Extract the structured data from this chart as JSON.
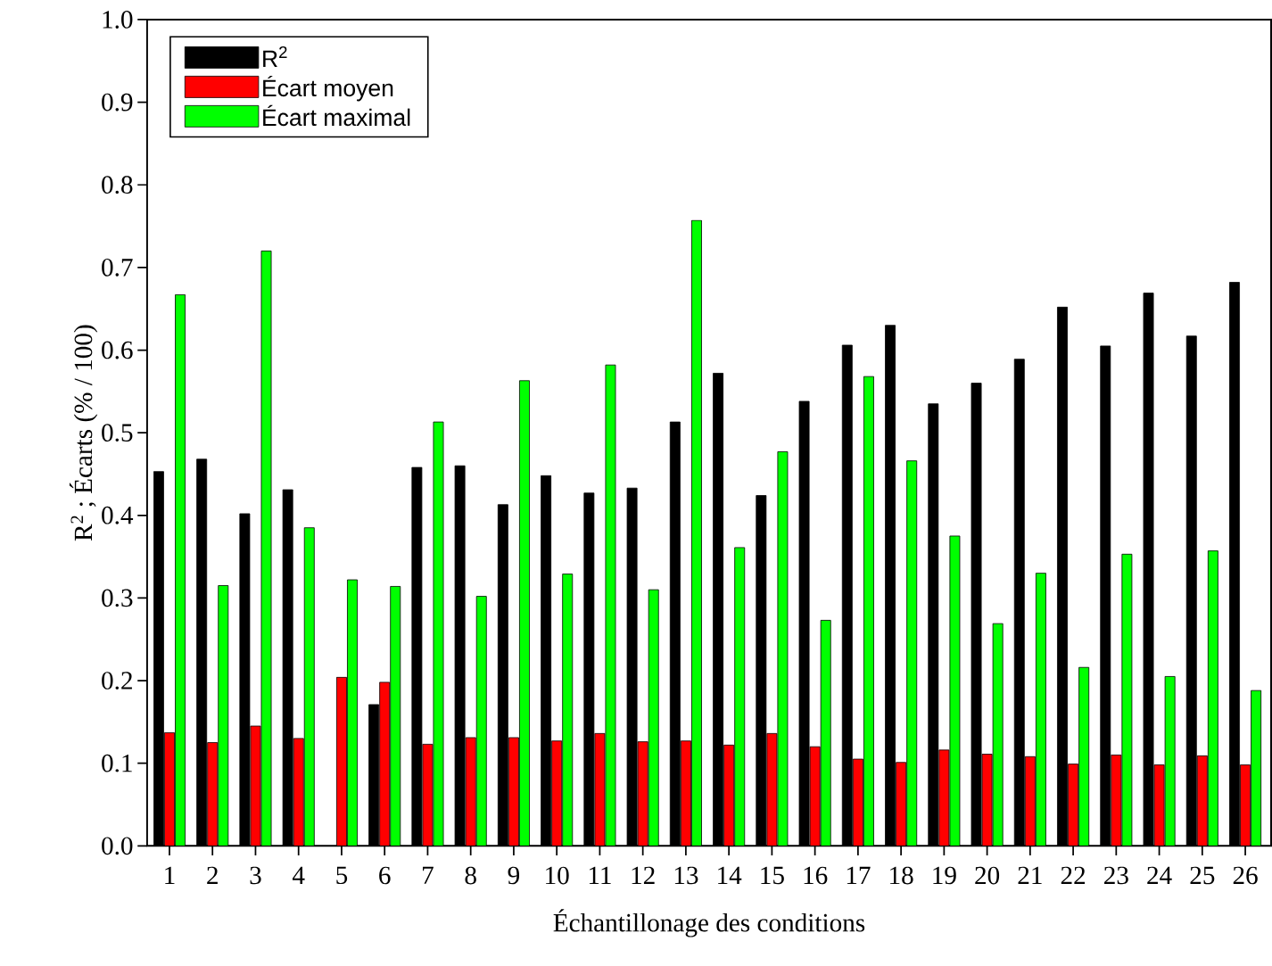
{
  "chart_data": {
    "type": "bar",
    "xlabel": "Échantillonage des conditions",
    "ylabel": "R$^{2}$ ; Écarts (% / 100)",
    "categories": [
      "1",
      "2",
      "3",
      "4",
      "5",
      "6",
      "7",
      "8",
      "9",
      "10",
      "11",
      "12",
      "13",
      "14",
      "15",
      "16",
      "17",
      "18",
      "19",
      "20",
      "21",
      "22",
      "23",
      "24",
      "25",
      "26"
    ],
    "series": [
      {
        "name": "R$^{2}$",
        "color": "#000000",
        "values": [
          0.453,
          0.468,
          0.402,
          0.431,
          null,
          0.171,
          0.458,
          0.46,
          0.413,
          0.448,
          0.427,
          0.433,
          0.513,
          0.572,
          0.424,
          0.538,
          0.606,
          0.63,
          0.535,
          0.56,
          0.589,
          0.652,
          0.605,
          0.669,
          0.617,
          0.682
        ]
      },
      {
        "name": "Écart moyen",
        "color": "#ff0000",
        "values": [
          0.137,
          0.125,
          0.145,
          0.13,
          0.204,
          0.198,
          0.123,
          0.131,
          0.131,
          0.127,
          0.136,
          0.126,
          0.127,
          0.122,
          0.136,
          0.12,
          0.105,
          0.101,
          0.116,
          0.111,
          0.108,
          0.099,
          0.11,
          0.098,
          0.109,
          0.098
        ]
      },
      {
        "name": "Écart maximal",
        "color": "#00ff00",
        "values": [
          0.667,
          0.315,
          0.72,
          0.385,
          0.322,
          0.314,
          0.513,
          0.302,
          0.563,
          0.329,
          0.582,
          0.31,
          0.757,
          0.361,
          0.477,
          0.273,
          0.568,
          0.466,
          0.375,
          0.269,
          0.33,
          0.216,
          0.353,
          0.205,
          0.357,
          0.188
        ]
      }
    ],
    "ylim": [
      0,
      1.0
    ],
    "yticks": [
      {
        "value": 0,
        "label": "0.0"
      },
      {
        "value": 0.1,
        "label": "0.1"
      },
      {
        "value": 0.2,
        "label": "0.2"
      },
      {
        "value": 0.3,
        "label": "0.3"
      },
      {
        "value": 0.4,
        "label": "0.4"
      },
      {
        "value": 0.5,
        "label": "0.5"
      },
      {
        "value": 0.6,
        "label": "0.6"
      },
      {
        "value": 0.7,
        "label": "0.7"
      },
      {
        "value": 0.8,
        "label": "0.8"
      },
      {
        "value": 0.9,
        "label": "0.9"
      },
      {
        "value": 1.0,
        "label": "1.0"
      }
    ],
    "legend": "top left",
    "grid": false
  }
}
